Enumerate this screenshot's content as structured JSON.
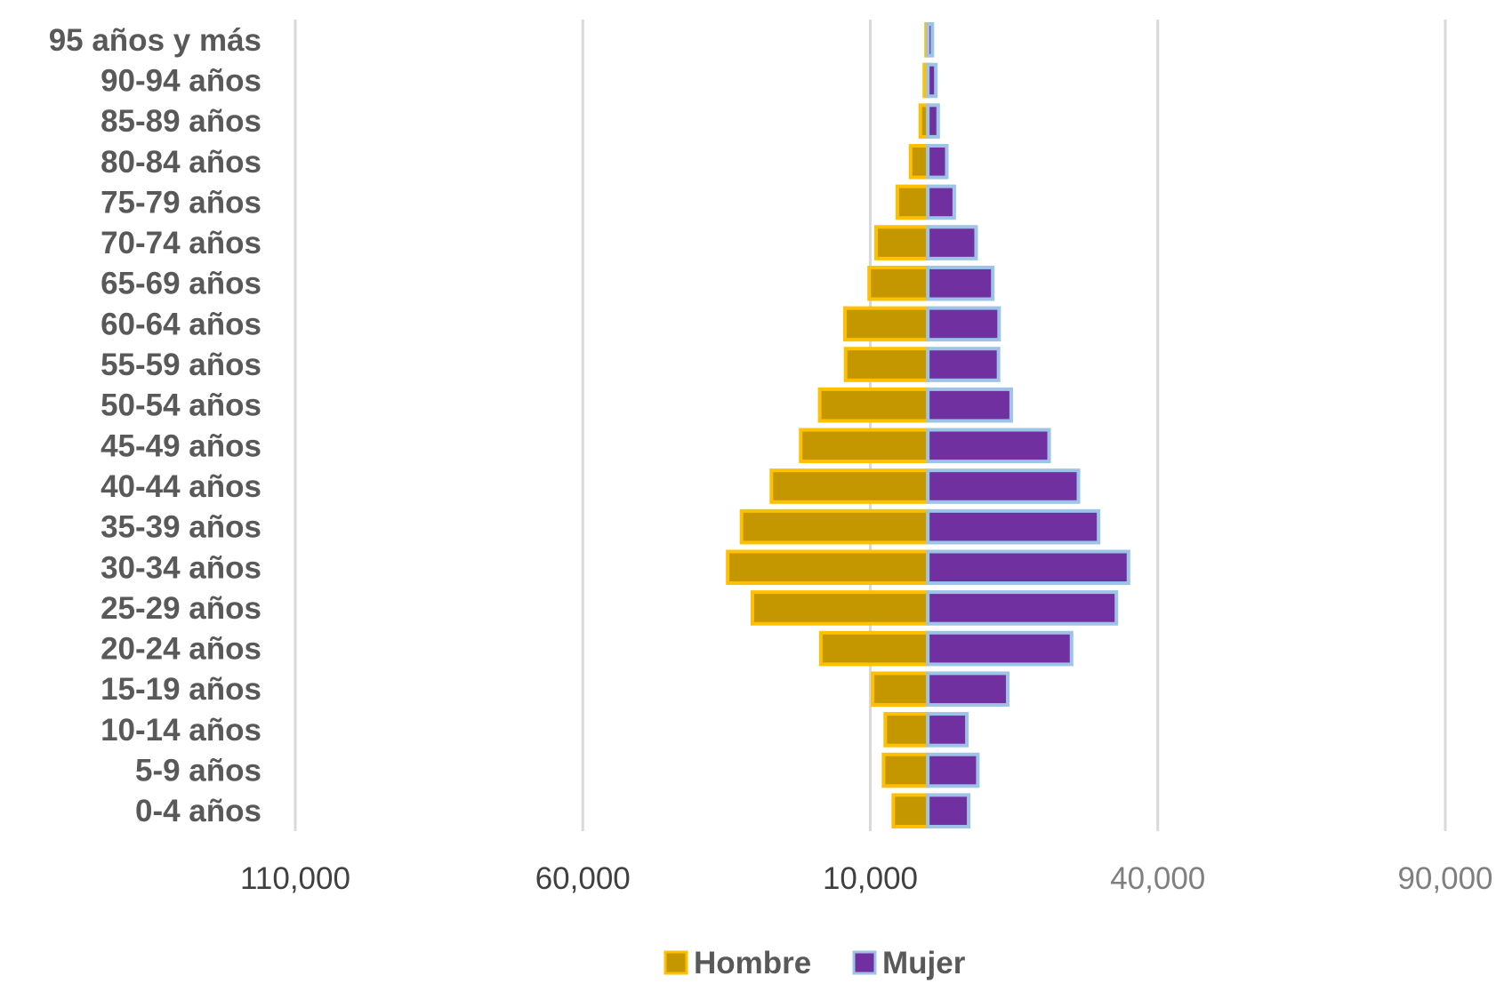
{
  "chart_data": {
    "type": "bar",
    "orientation": "horizontal",
    "categories": [
      "0-4 años",
      "5-9 años",
      "10-14 años",
      "15-19 años",
      "20-24 años",
      "25-29 años",
      "30-34 años",
      "35-39 años",
      "40-44 años",
      "45-49 años",
      "50-54 años",
      "55-59 años",
      "60-64 años",
      "65-69 años",
      "70-74 años",
      "75-79 años",
      "80-84 años",
      "85-89 años",
      "90-94 años",
      "95 años y más"
    ],
    "series": [
      {
        "name": "Hombre",
        "color": "#c49600",
        "border": "#ffc000",
        "values": [
          6000,
          7700,
          7400,
          9600,
          18600,
          30500,
          34800,
          32400,
          27200,
          22100,
          18800,
          14300,
          14400,
          10200,
          9000,
          5300,
          3000,
          1300,
          600,
          300
        ]
      },
      {
        "name": "Mujer",
        "color": "#7030a0",
        "border": "#9dc3e6",
        "values": [
          7100,
          8700,
          6800,
          13900,
          25000,
          32800,
          34900,
          29700,
          26200,
          21100,
          14500,
          12300,
          12400,
          11300,
          8400,
          4600,
          3300,
          1800,
          1400,
          800
        ]
      }
    ],
    "xaxis": {
      "ticks": [
        -110000,
        -60000,
        -10000,
        40000,
        90000
      ],
      "tick_labels": [
        "110,000",
        "60,000",
        "10,000",
        "40,000",
        "90,000"
      ]
    },
    "xlim": [
      -110000,
      90000
    ],
    "grid": true,
    "legend": {
      "position": "bottom",
      "items": [
        "Hombre",
        "Mujer"
      ]
    }
  }
}
